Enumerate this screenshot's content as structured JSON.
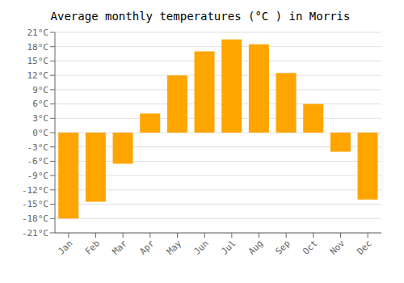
{
  "chart_data": {
    "type": "bar",
    "title": "Average monthly temperatures (°C ) in Morris",
    "categories": [
      "Jan",
      "Feb",
      "Mar",
      "Apr",
      "May",
      "Jun",
      "Jul",
      "Aug",
      "Sep",
      "Oct",
      "Nov",
      "Dec"
    ],
    "values": [
      -18,
      -14.5,
      -6.5,
      4,
      12,
      17,
      19.5,
      18.5,
      12.5,
      6,
      -4,
      -14
    ],
    "color": "#FFA500",
    "ylim": [
      -21,
      21
    ],
    "yticks": [
      {
        "value": -21,
        "label": "-21°C"
      },
      {
        "value": -18,
        "label": "-18°C"
      },
      {
        "value": -15,
        "label": "-15°C"
      },
      {
        "value": -12,
        "label": "-12°C"
      },
      {
        "value": -9,
        "label": "-9°C"
      },
      {
        "value": -6,
        "label": "-6°C"
      },
      {
        "value": -3,
        "label": "-3°C"
      },
      {
        "value": 0,
        "label": "0°C"
      },
      {
        "value": 3,
        "label": "3°C"
      },
      {
        "value": 6,
        "label": "6°C"
      },
      {
        "value": 9,
        "label": "9°C"
      },
      {
        "value": 12,
        "label": "12°C"
      },
      {
        "value": 15,
        "label": "15°C"
      },
      {
        "value": 18,
        "label": "18°C"
      },
      {
        "value": 21,
        "label": "21°C"
      }
    ],
    "grid": true
  }
}
